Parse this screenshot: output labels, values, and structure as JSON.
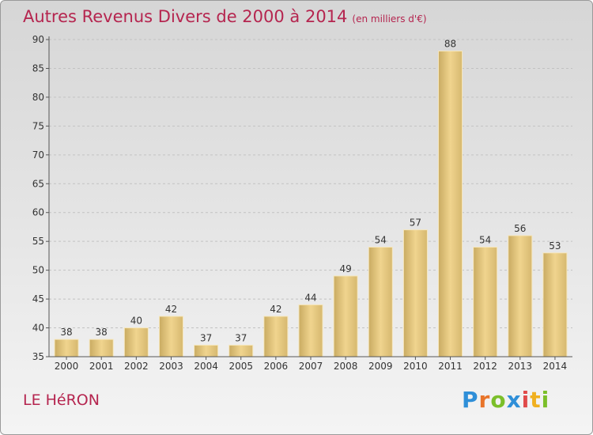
{
  "header": {
    "title": "Autres Revenus Divers de 2000 à 2014",
    "unit": "(en milliers d'€)"
  },
  "footer": {
    "place": "LE HéRON",
    "logo_letters": [
      "P",
      "r",
      "o",
      "x",
      "i",
      "t",
      "i"
    ],
    "logo_colors": [
      "#2f8fd8",
      "#e8742a",
      "#7bbf2a",
      "#2f8fd8",
      "#e04a4a",
      "#f0b020",
      "#7bbf2a"
    ]
  },
  "chart_data": {
    "type": "bar",
    "categories": [
      "2000",
      "2001",
      "2002",
      "2003",
      "2004",
      "2005",
      "2006",
      "2007",
      "2008",
      "2009",
      "2010",
      "2011",
      "2012",
      "2013",
      "2014"
    ],
    "values": [
      38,
      38,
      40,
      42,
      37,
      37,
      42,
      44,
      49,
      54,
      57,
      88,
      54,
      56,
      53
    ],
    "ylim": [
      35,
      90
    ],
    "yticks": [
      35,
      40,
      45,
      50,
      55,
      60,
      65,
      70,
      75,
      80,
      85,
      90
    ],
    "grid": true,
    "bar_color": "#e6c781",
    "title": "Autres Revenus Divers de 2000 à 2014",
    "xlabel": "",
    "ylabel": ""
  }
}
